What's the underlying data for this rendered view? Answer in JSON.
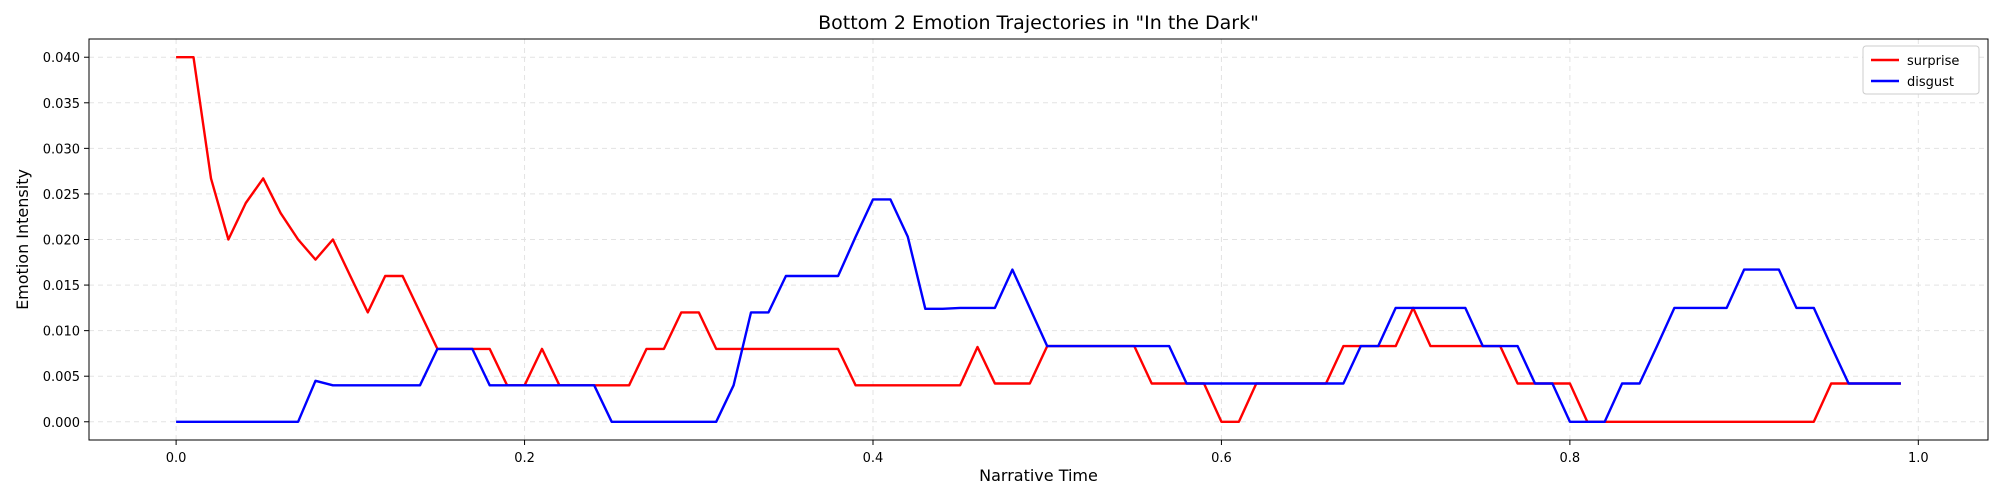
{
  "chart_data": {
    "type": "line",
    "title": "Bottom 2 Emotion Trajectories in \"In the Dark\"",
    "xlabel": "Narrative Time",
    "ylabel": "Emotion Intensity",
    "xlim": [
      -0.05,
      1.04
    ],
    "ylim": [
      -0.002,
      0.042
    ],
    "xticks": [
      0.0,
      0.2,
      0.4,
      0.6,
      0.8,
      1.0
    ],
    "xtick_labels": [
      "0.0",
      "0.2",
      "0.4",
      "0.6",
      "0.8",
      "1.0"
    ],
    "yticks": [
      0.0,
      0.005,
      0.01,
      0.015,
      0.02,
      0.025,
      0.03,
      0.035,
      0.04
    ],
    "ytick_labels": [
      "0.000",
      "0.005",
      "0.010",
      "0.015",
      "0.020",
      "0.025",
      "0.030",
      "0.035",
      "0.040"
    ],
    "grid": true,
    "legend_position": "top-right",
    "x": [
      0.0,
      0.01,
      0.02,
      0.03,
      0.04,
      0.05,
      0.06,
      0.07,
      0.08,
      0.09,
      0.1,
      0.11,
      0.12,
      0.13,
      0.14,
      0.15,
      0.16,
      0.17,
      0.18,
      0.19,
      0.2,
      0.21,
      0.22,
      0.23,
      0.24,
      0.25,
      0.26,
      0.27,
      0.28,
      0.29,
      0.3,
      0.31,
      0.32,
      0.33,
      0.34,
      0.35,
      0.36,
      0.37,
      0.38,
      0.39,
      0.4,
      0.41,
      0.42,
      0.43,
      0.44,
      0.45,
      0.46,
      0.47,
      0.48,
      0.49,
      0.5,
      0.51,
      0.52,
      0.53,
      0.54,
      0.55,
      0.56,
      0.57,
      0.58,
      0.59,
      0.6,
      0.61,
      0.62,
      0.63,
      0.64,
      0.65,
      0.66,
      0.67,
      0.68,
      0.69,
      0.7,
      0.71,
      0.72,
      0.73,
      0.74,
      0.75,
      0.76,
      0.77,
      0.78,
      0.79,
      0.8,
      0.81,
      0.82,
      0.83,
      0.84,
      0.85,
      0.86,
      0.87,
      0.88,
      0.89,
      0.9,
      0.91,
      0.92,
      0.93,
      0.94,
      0.95,
      0.96,
      0.97,
      0.98,
      0.99
    ],
    "series": [
      {
        "name": "surprise",
        "color": "#ff0000",
        "values": [
          0.04,
          0.04,
          0.0267,
          0.02,
          0.024,
          0.0267,
          0.0229,
          0.02,
          0.0178,
          0.02,
          0.016,
          0.012,
          0.016,
          0.016,
          0.012,
          0.008,
          0.008,
          0.008,
          0.008,
          0.004,
          0.004,
          0.008,
          0.004,
          0.004,
          0.004,
          0.004,
          0.004,
          0.008,
          0.008,
          0.012,
          0.012,
          0.008,
          0.008,
          0.008,
          0.008,
          0.008,
          0.008,
          0.008,
          0.008,
          0.004,
          0.004,
          0.004,
          0.004,
          0.004,
          0.004,
          0.004,
          0.0082,
          0.0042,
          0.0042,
          0.0042,
          0.0083,
          0.0083,
          0.0083,
          0.0083,
          0.0083,
          0.0083,
          0.0042,
          0.0042,
          0.0042,
          0.0042,
          0.0,
          0.0,
          0.0042,
          0.0042,
          0.0042,
          0.0042,
          0.0042,
          0.0083,
          0.0083,
          0.0083,
          0.0083,
          0.0125,
          0.0083,
          0.0083,
          0.0083,
          0.0083,
          0.0083,
          0.0042,
          0.0042,
          0.0042,
          0.0042,
          0.0,
          0.0,
          0.0,
          0.0,
          0.0,
          0.0,
          0.0,
          0.0,
          0.0,
          0.0,
          0.0,
          0.0,
          0.0,
          0.0,
          0.0042,
          0.0042,
          0.0042,
          0.0042,
          0.0042
        ]
      },
      {
        "name": "disgust",
        "color": "#0000ff",
        "values": [
          0.0,
          0.0,
          0.0,
          0.0,
          0.0,
          0.0,
          0.0,
          0.0,
          0.0045,
          0.004,
          0.004,
          0.004,
          0.004,
          0.004,
          0.004,
          0.008,
          0.008,
          0.008,
          0.004,
          0.004,
          0.004,
          0.004,
          0.004,
          0.004,
          0.004,
          0.0,
          0.0,
          0.0,
          0.0,
          0.0,
          0.0,
          0.0,
          0.004,
          0.012,
          0.012,
          0.016,
          0.016,
          0.016,
          0.016,
          0.0203,
          0.0244,
          0.0244,
          0.0203,
          0.0124,
          0.0124,
          0.0125,
          0.0125,
          0.0125,
          0.0167,
          0.0125,
          0.0083,
          0.0083,
          0.0083,
          0.0083,
          0.0083,
          0.0083,
          0.0083,
          0.0083,
          0.0042,
          0.0042,
          0.0042,
          0.0042,
          0.0042,
          0.0042,
          0.0042,
          0.0042,
          0.0042,
          0.0042,
          0.0083,
          0.0083,
          0.0125,
          0.0125,
          0.0125,
          0.0125,
          0.0125,
          0.0083,
          0.0083,
          0.0083,
          0.0042,
          0.0042,
          0.0,
          0.0,
          0.0,
          0.0042,
          0.0042,
          0.0083,
          0.0125,
          0.0125,
          0.0125,
          0.0125,
          0.0167,
          0.0167,
          0.0167,
          0.0125,
          0.0125,
          0.0083,
          0.0042,
          0.0042,
          0.0042,
          0.0042
        ]
      }
    ]
  }
}
